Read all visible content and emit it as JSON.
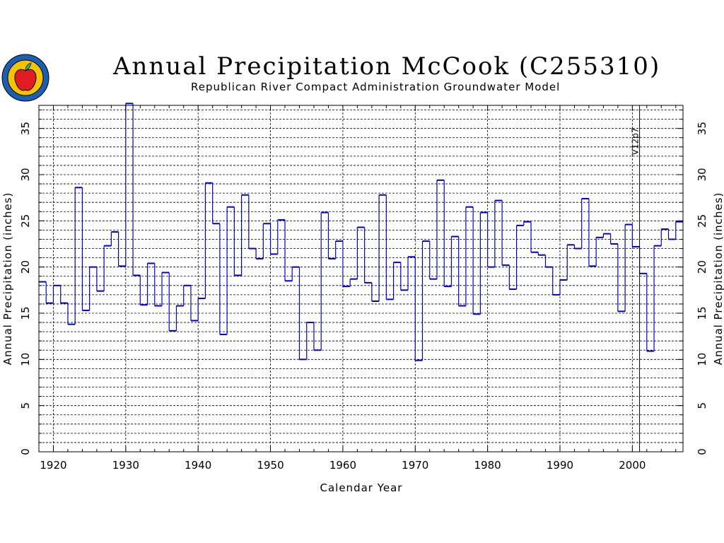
{
  "header": {
    "title": "Annual Precipitation McCook (C255310)",
    "subtitle": "Republican River Compact Administration Groundwater Model"
  },
  "colors": {
    "series": "#0000cc",
    "grid": "#000000",
    "logo_ring": "#1a5fb4",
    "logo_fill": "#f5c400",
    "apple": "#e01b24"
  },
  "chart_data": {
    "type": "line",
    "step": true,
    "title": "Annual Precipitation McCook (C255310)",
    "subtitle": "Republican River Compact Administration Groundwater Model",
    "xlabel": "Calendar Year",
    "ylabel": "Annual Precipitation (inches)",
    "ylabel_right": "Annual Precipitation (inches)",
    "xlim": [
      1918,
      2007
    ],
    "ylim": [
      0,
      37.5
    ],
    "xticks": [
      1920,
      1930,
      1940,
      1950,
      1960,
      1970,
      1980,
      1990,
      2000
    ],
    "yticks": [
      0,
      5,
      10,
      15,
      20,
      25,
      30,
      35
    ],
    "grid": true,
    "annotation": {
      "text": "V12p7",
      "x": 2001
    },
    "series": [
      {
        "x": [
          1918,
          1919,
          1920,
          1921,
          1922,
          1923,
          1924,
          1925,
          1926,
          1927,
          1928,
          1929,
          1930,
          1931,
          1932,
          1933,
          1934,
          1935,
          1936,
          1937,
          1938,
          1939,
          1940,
          1941,
          1942,
          1943,
          1944,
          1945,
          1946,
          1947,
          1948,
          1949,
          1950,
          1951,
          1952,
          1953,
          1954,
          1955,
          1956,
          1957,
          1958,
          1959,
          1960,
          1961,
          1962,
          1963,
          1964,
          1965,
          1966,
          1967,
          1968,
          1969,
          1970,
          1971,
          1972,
          1973,
          1974,
          1975,
          1976,
          1977,
          1978,
          1979,
          1980,
          1981,
          1982,
          1983,
          1984,
          1985,
          1986,
          1987,
          1988,
          1989,
          1990,
          1991,
          1992,
          1993,
          1994,
          1995,
          1996,
          1997,
          1998,
          1999,
          2000,
          2001,
          2002,
          2003,
          2004,
          2005,
          2006
        ],
        "values": [
          18.4,
          16.1,
          18.0,
          16.1,
          13.8,
          28.6,
          15.3,
          20.0,
          17.4,
          22.3,
          23.8,
          20.1,
          37.7,
          19.1,
          15.9,
          20.4,
          15.8,
          19.4,
          13.1,
          15.8,
          18.0,
          14.2,
          16.6,
          29.1,
          24.7,
          12.7,
          26.5,
          19.1,
          27.8,
          22.0,
          20.9,
          24.7,
          21.4,
          25.1,
          18.5,
          20.0,
          10.0,
          14.0,
          11.0,
          25.9,
          20.9,
          22.8,
          17.9,
          18.7,
          24.3,
          18.3,
          16.3,
          27.8,
          16.5,
          20.5,
          17.5,
          21.1,
          9.9,
          22.8,
          18.7,
          29.4,
          17.9,
          23.3,
          15.8,
          26.5,
          14.9,
          25.9,
          20.0,
          27.2,
          20.2,
          17.6,
          24.5,
          24.9,
          21.6,
          21.3,
          20.0,
          17.0,
          18.6,
          22.4,
          22.0,
          27.4,
          20.1,
          23.2,
          23.6,
          22.5,
          15.2,
          24.6,
          22.2,
          19.3,
          10.9,
          22.3,
          24.1,
          23.0,
          24.9
        ]
      }
    ]
  }
}
